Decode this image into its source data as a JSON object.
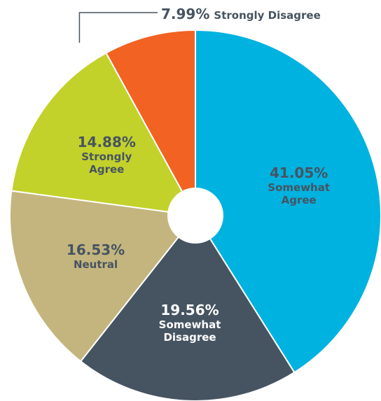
{
  "chart_data": {
    "type": "pie",
    "categories": [
      "Somewhat Agree",
      "Somewhat Disagree",
      "Neutral",
      "Strongly Agree",
      "Strongly Disagree"
    ],
    "values": [
      41.05,
      19.56,
      16.53,
      14.88,
      7.99
    ],
    "value_labels": [
      "41.05%",
      "19.56%",
      "16.53%",
      "14.88%",
      "7.99%"
    ],
    "colors": [
      "#00b2e0",
      "#465461",
      "#c4b57f",
      "#c3d12b",
      "#f26222"
    ]
  }
}
